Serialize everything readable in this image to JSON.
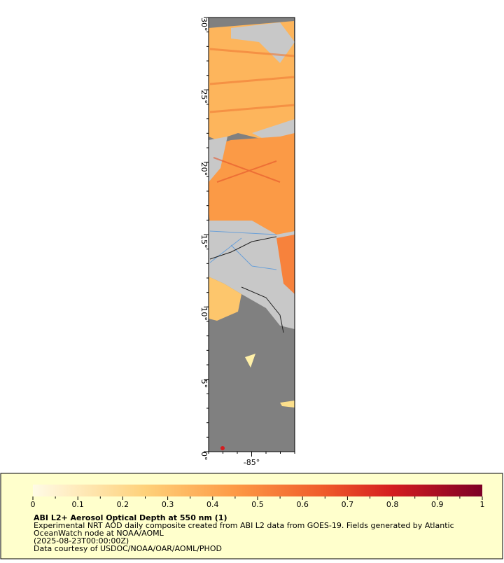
{
  "map": {
    "lat_range": [
      0,
      30
    ],
    "lon_range": [
      -88,
      -82
    ],
    "lat_ticks": [
      {
        "value": 0,
        "label": "0°"
      },
      {
        "value": 5,
        "label": "5°"
      },
      {
        "value": 10,
        "label": "10°"
      },
      {
        "value": 15,
        "label": "15°"
      },
      {
        "value": 20,
        "label": "20°"
      },
      {
        "value": 25,
        "label": "25°"
      },
      {
        "value": 30,
        "label": "30°"
      }
    ],
    "lon_ticks": [
      {
        "value": -85,
        "label": "-85°"
      }
    ]
  },
  "legend": {
    "title": "ABI L2+ Aerosol Optical Depth at 550 nm (1)",
    "range": [
      0,
      1
    ],
    "ticks": [
      0,
      0.1,
      0.2,
      0.3,
      0.4,
      0.5,
      0.6,
      0.7,
      0.8,
      0.9,
      1
    ],
    "lines": [
      "Experimental NRT AOD daily composite created from ABI L2 data from GOES-19. Fields generated by Atlantic",
      "OceanWatch node at NOAA/AOML",
      "(2025-08-23T00:00:00Z)",
      "Data courtesy of USDOC/NOAA/OAR/AOML/PHOD"
    ]
  }
}
